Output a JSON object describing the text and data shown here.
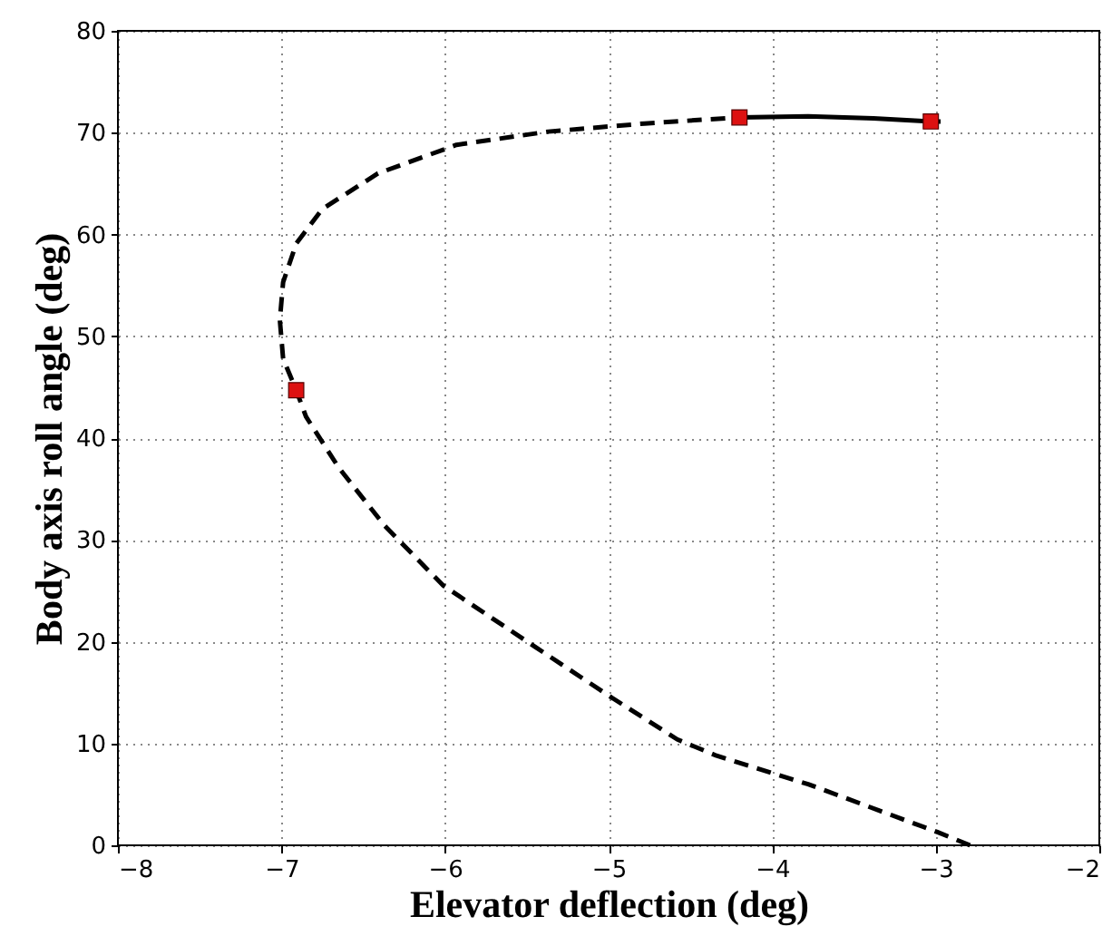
{
  "chart_data": {
    "type": "line",
    "xlabel": "Elevator deflection (deg)",
    "ylabel": "Body axis roll angle (deg)",
    "xlim": [
      -8,
      -2
    ],
    "xticks": [
      -8,
      -7,
      -6,
      -5,
      -4,
      -3,
      -2
    ],
    "ylim": [
      0,
      80
    ],
    "yticks": [
      0,
      10,
      20,
      30,
      40,
      50,
      60,
      70,
      80
    ],
    "grid": true,
    "series": [
      {
        "line_style": "dashed",
        "color": "#000000",
        "x": [
          -2.79,
          -2.99,
          -3.78,
          -4.34,
          -4.58,
          -4.98,
          -5.45,
          -6.01,
          -6.37,
          -6.65,
          -6.85,
          -6.91,
          -6.99,
          -7.01,
          -6.99,
          -6.91,
          -6.75,
          -6.41,
          -5.93,
          -5.37,
          -4.78,
          -4.2
        ],
        "values": [
          0,
          1.3,
          6.0,
          8.8,
          10.4,
          14.5,
          19.5,
          25.5,
          31.4,
          37.1,
          42.1,
          44.7,
          47.8,
          51.6,
          55.3,
          59.1,
          62.5,
          66.0,
          68.8,
          70.1,
          70.9,
          71.5
        ]
      },
      {
        "line_style": "solid",
        "color": "#000000",
        "x": [
          -4.2,
          -3.78,
          -3.38,
          -3.03,
          -2.97
        ],
        "values": [
          71.5,
          71.6,
          71.4,
          71.1,
          71.1
        ]
      },
      {
        "type": "scatter",
        "marker": "square",
        "color": "#dd1111",
        "x": [
          -6.91,
          -4.2,
          -3.03
        ],
        "values": [
          44.7,
          71.5,
          71.1
        ]
      }
    ]
  }
}
